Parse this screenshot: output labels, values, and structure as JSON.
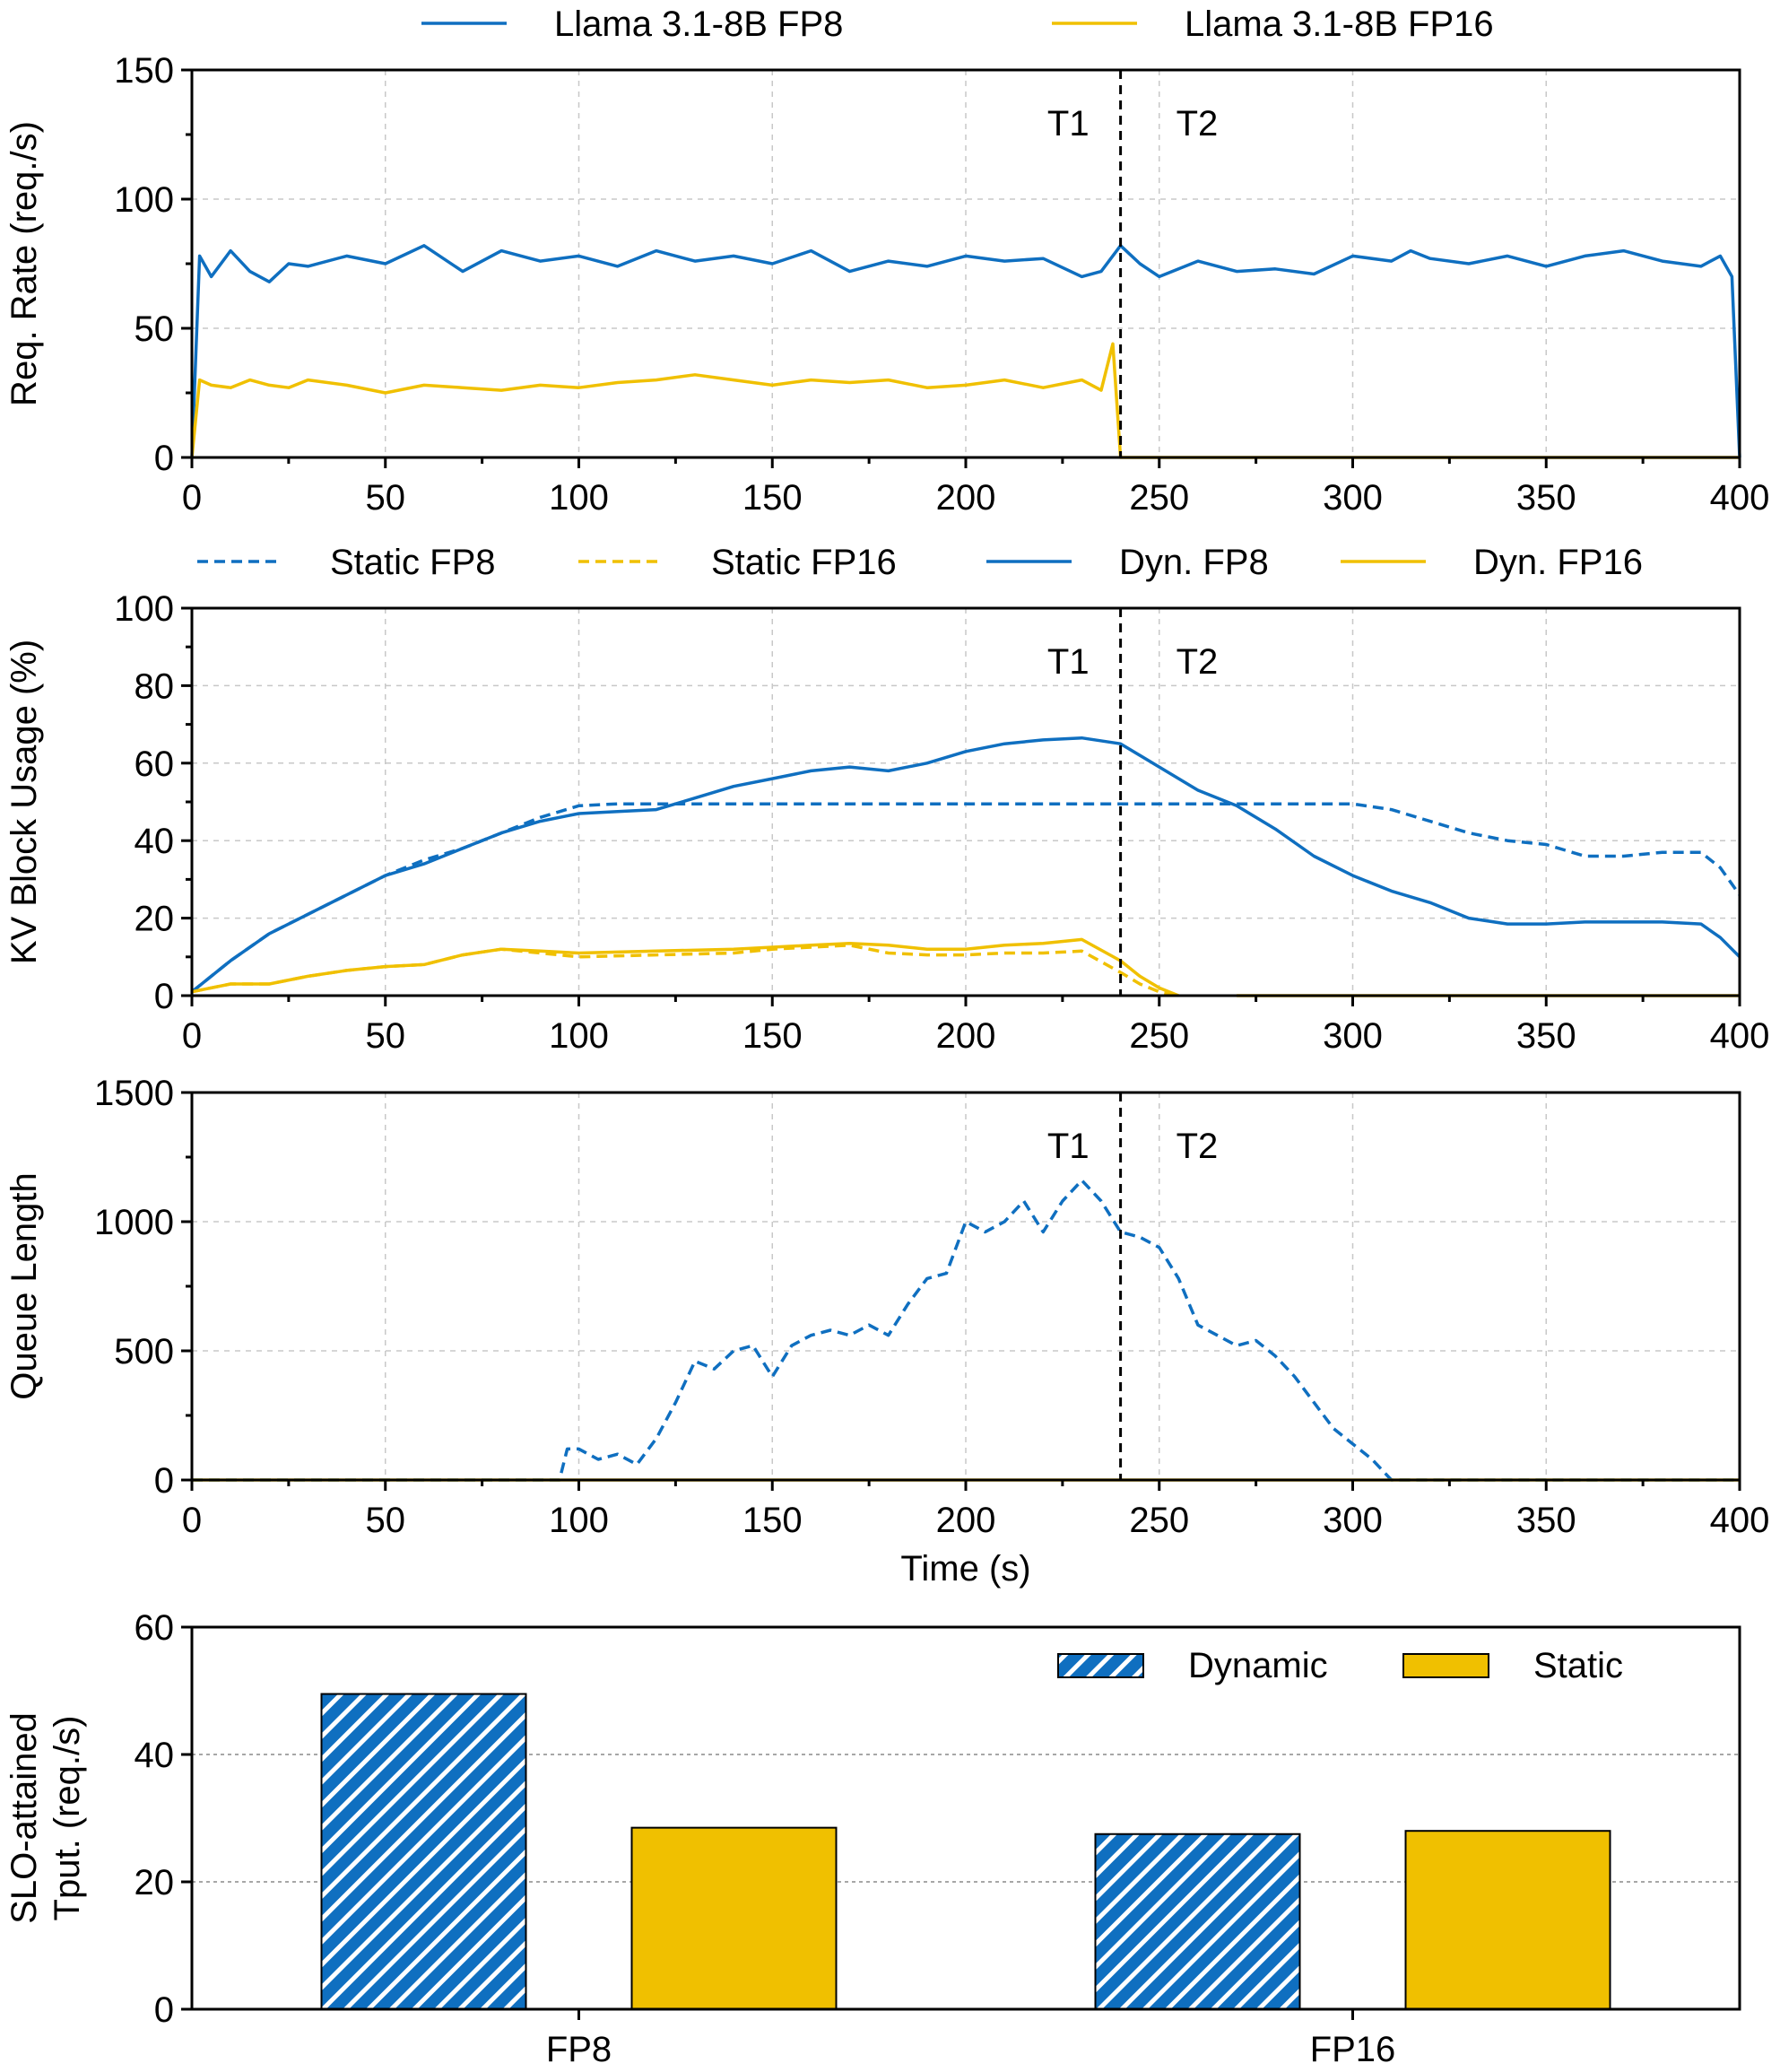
{
  "colors": {
    "fp8": "#0f6fc0",
    "fp16": "#f0c000"
  },
  "chart_data": [
    {
      "type": "line",
      "ylabel": "Req. Rate (req./s)",
      "xlim": [
        0,
        400
      ],
      "ylim": [
        0,
        150
      ],
      "xticks": [
        0,
        50,
        100,
        150,
        200,
        250,
        300,
        350,
        400
      ],
      "yticks": [
        0,
        50,
        100,
        150
      ],
      "grid": true,
      "legend_position": "top",
      "annotations": [
        {
          "x": 240,
          "labels": [
            "T1",
            "T2"
          ]
        }
      ],
      "series": [
        {
          "name": "Llama 3.1-8B FP8",
          "style": "solid",
          "color": "fp8",
          "x": [
            0,
            2,
            5,
            10,
            15,
            20,
            25,
            30,
            40,
            50,
            60,
            70,
            80,
            90,
            100,
            110,
            120,
            130,
            140,
            150,
            160,
            170,
            180,
            190,
            200,
            210,
            220,
            230,
            235,
            240,
            245,
            250,
            260,
            270,
            280,
            290,
            300,
            310,
            315,
            320,
            330,
            340,
            350,
            360,
            370,
            380,
            390,
            395,
            398,
            400
          ],
          "y": [
            0,
            78,
            70,
            80,
            72,
            68,
            75,
            74,
            78,
            75,
            82,
            72,
            80,
            76,
            78,
            74,
            80,
            76,
            78,
            75,
            80,
            72,
            76,
            74,
            78,
            76,
            77,
            70,
            72,
            82,
            75,
            70,
            76,
            72,
            73,
            71,
            78,
            76,
            80,
            77,
            75,
            78,
            74,
            78,
            80,
            76,
            74,
            78,
            70,
            0
          ]
        },
        {
          "name": "Llama 3.1-8B FP16",
          "style": "solid",
          "color": "fp16",
          "x": [
            0,
            2,
            5,
            10,
            15,
            20,
            25,
            30,
            40,
            50,
            60,
            70,
            80,
            90,
            100,
            110,
            120,
            130,
            140,
            150,
            160,
            170,
            180,
            190,
            200,
            210,
            220,
            230,
            235,
            238,
            240,
            250,
            300,
            350,
            400
          ],
          "y": [
            0,
            30,
            28,
            27,
            30,
            28,
            27,
            30,
            28,
            25,
            28,
            27,
            26,
            28,
            27,
            29,
            30,
            32,
            30,
            28,
            30,
            29,
            30,
            27,
            28,
            30,
            27,
            30,
            26,
            44,
            0,
            0,
            0,
            0,
            0
          ]
        }
      ]
    },
    {
      "type": "line",
      "ylabel": "KV Block Usage  (%)",
      "xlim": [
        0,
        400
      ],
      "ylim": [
        0,
        100
      ],
      "xticks": [
        0,
        50,
        100,
        150,
        200,
        250,
        300,
        350,
        400
      ],
      "yticks": [
        0,
        20,
        40,
        60,
        80,
        100
      ],
      "grid": true,
      "legend_position": "top",
      "annotations": [
        {
          "x": 240,
          "labels": [
            "T1",
            "T2"
          ]
        }
      ],
      "series": [
        {
          "name": "Static FP8",
          "style": "dashed",
          "color": "fp8",
          "x": [
            0,
            10,
            20,
            30,
            40,
            50,
            60,
            70,
            80,
            90,
            100,
            110,
            120,
            130,
            150,
            200,
            250,
            300,
            310,
            320,
            330,
            340,
            350,
            360,
            370,
            380,
            390,
            395,
            400
          ],
          "y": [
            1,
            9,
            16,
            21,
            26,
            31,
            35,
            38,
            42,
            46,
            49,
            49.5,
            49.5,
            49.5,
            49.5,
            49.5,
            49.5,
            49.5,
            48,
            45,
            42,
            40,
            39,
            36,
            36,
            37,
            37,
            33,
            26
          ]
        },
        {
          "name": "Static FP16",
          "style": "dashed",
          "color": "fp16",
          "x": [
            0,
            10,
            20,
            30,
            40,
            50,
            60,
            70,
            80,
            90,
            100,
            120,
            140,
            150,
            160,
            170,
            180,
            190,
            200,
            210,
            220,
            230,
            240,
            245,
            250,
            255
          ],
          "y": [
            1,
            3,
            3,
            5,
            6.5,
            7.5,
            8,
            10.5,
            12,
            11,
            10,
            10.5,
            11,
            12,
            12.5,
            13,
            11,
            10.5,
            10.5,
            11,
            11,
            11.5,
            6,
            3,
            1,
            0
          ]
        },
        {
          "name": "Dyn. FP8",
          "style": "solid",
          "color": "fp8",
          "x": [
            0,
            10,
            20,
            30,
            40,
            50,
            60,
            70,
            80,
            90,
            100,
            110,
            120,
            130,
            140,
            150,
            160,
            170,
            180,
            190,
            200,
            210,
            220,
            230,
            240,
            250,
            260,
            270,
            280,
            290,
            300,
            310,
            320,
            330,
            340,
            350,
            360,
            370,
            380,
            390,
            395,
            400
          ],
          "y": [
            1,
            9,
            16,
            21,
            26,
            31,
            34,
            38,
            42,
            45,
            47,
            47.5,
            48,
            51,
            54,
            56,
            58,
            59,
            58,
            60,
            63,
            65,
            66,
            66.5,
            65,
            59,
            53,
            49,
            43,
            36,
            31,
            27,
            24,
            20,
            18.5,
            18.5,
            19,
            19,
            19,
            18.5,
            15,
            10
          ]
        },
        {
          "name": "Dyn. FP16",
          "style": "solid",
          "color": "fp16",
          "x": [
            0,
            10,
            20,
            30,
            40,
            50,
            60,
            70,
            80,
            90,
            100,
            120,
            140,
            150,
            160,
            170,
            180,
            190,
            200,
            210,
            220,
            230,
            240,
            245,
            250,
            255,
            null,
            270,
            300,
            350,
            400
          ],
          "y": [
            1,
            3,
            3,
            5,
            6.5,
            7.5,
            8,
            10.5,
            12,
            11.5,
            11,
            11.5,
            12,
            12.5,
            13,
            13.5,
            13,
            12,
            12,
            13,
            13.5,
            14.5,
            9,
            5,
            2,
            0,
            null,
            0,
            0,
            0,
            0
          ]
        }
      ]
    },
    {
      "type": "line",
      "ylabel": "Queue Length",
      "xlabel": "Time (s)",
      "xlim": [
        0,
        400
      ],
      "ylim": [
        0,
        1500
      ],
      "xticks": [
        0,
        50,
        100,
        150,
        200,
        250,
        300,
        350,
        400
      ],
      "yticks": [
        0,
        500,
        1000,
        1500
      ],
      "grid": true,
      "annotations": [
        {
          "x": 240,
          "labels": [
            "T1",
            "T2"
          ]
        }
      ],
      "series": [
        {
          "style": "dashed",
          "color": "fp8",
          "x": [
            0,
            95,
            97,
            100,
            105,
            110,
            115,
            120,
            125,
            130,
            135,
            140,
            145,
            150,
            155,
            160,
            165,
            170,
            175,
            180,
            185,
            190,
            195,
            200,
            205,
            210,
            215,
            220,
            225,
            230,
            235,
            240,
            245,
            250,
            255,
            260,
            265,
            270,
            275,
            280,
            285,
            290,
            295,
            300,
            305,
            310,
            320,
            350,
            400
          ],
          "y": [
            0,
            0,
            120,
            120,
            80,
            100,
            60,
            160,
            300,
            460,
            430,
            500,
            520,
            400,
            520,
            560,
            580,
            560,
            600,
            560,
            680,
            780,
            800,
            1000,
            960,
            1000,
            1080,
            960,
            1080,
            1160,
            1080,
            960,
            940,
            900,
            780,
            600,
            560,
            520,
            540,
            480,
            400,
            300,
            200,
            140,
            80,
            0,
            0,
            0,
            0
          ]
        },
        {
          "style": "solid",
          "color": "fp16",
          "x": [
            0,
            400
          ],
          "y": [
            0,
            0
          ]
        }
      ]
    },
    {
      "type": "bar",
      "ylabel": "SLO-attained\nTput. (req./s)",
      "categories": [
        "FP8",
        "FP16"
      ],
      "ylim": [
        0,
        60
      ],
      "yticks": [
        0,
        20,
        40,
        60
      ],
      "grid": true,
      "legend_position": "top-right",
      "series": [
        {
          "name": "Dynamic",
          "color": "fp8",
          "pattern": "hatched",
          "values": [
            49.5,
            27.5
          ]
        },
        {
          "name": "Static",
          "color": "fp16",
          "pattern": "solid",
          "values": [
            28.5,
            28
          ]
        }
      ]
    }
  ]
}
